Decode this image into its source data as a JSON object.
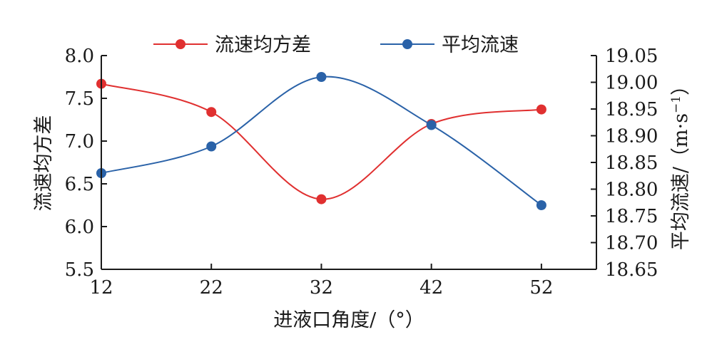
{
  "chart_data": {
    "type": "line",
    "xlabel": "进液口角度/（°）",
    "x": [
      12,
      22,
      32,
      42,
      52
    ],
    "x_ticks": [
      "12",
      "22",
      "32",
      "42",
      "52"
    ],
    "xlim": [
      12,
      57
    ],
    "legend_position": "top-center",
    "grid": false,
    "left_axis": {
      "label": "流速均方差",
      "ylim": [
        5.5,
        8.0
      ],
      "ticks": [
        "5.5",
        "6.0",
        "6.5",
        "7.0",
        "7.5",
        "8.0"
      ]
    },
    "right_axis": {
      "label_main": "平均流速/（m·s",
      "label_sup": "−1",
      "label_close": "）",
      "ylim": [
        18.65,
        19.05
      ],
      "ticks": [
        "18.65",
        "18.70",
        "18.75",
        "18.80",
        "18.85",
        "18.90",
        "18.95",
        "19.00",
        "19.05"
      ]
    },
    "series": [
      {
        "name": "流速均方差",
        "axis": "left",
        "color": "#e03030",
        "values": [
          7.67,
          7.34,
          6.32,
          7.2,
          7.37
        ]
      },
      {
        "name": "平均流速",
        "axis": "right",
        "color": "#2a62a8",
        "values": [
          18.83,
          18.88,
          19.01,
          18.92,
          18.77
        ]
      }
    ]
  }
}
